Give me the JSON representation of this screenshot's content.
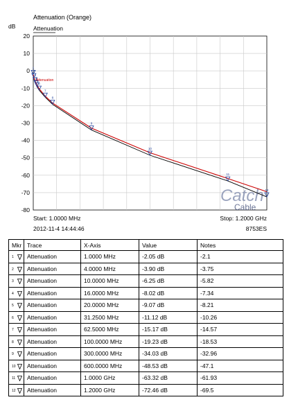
{
  "chart_data": {
    "type": "line",
    "title": "Attenuation (Orange)",
    "legend_label": "Attenuation",
    "ylabel": "dB",
    "ylim": [
      -80,
      20
    ],
    "yticks": [
      "20",
      "10",
      "0",
      "-10",
      "-20",
      "-30",
      "-40",
      "-50",
      "-60",
      "-70",
      "-80"
    ],
    "xlim_mhz": [
      1.0,
      1200.0
    ],
    "x_scale": "linear",
    "grid": true,
    "start_label": "Start: 1.0000 MHz",
    "stop_label": "Stop: 1.2000 GHz",
    "timestamp": "2012-11-4 14:44:46",
    "instrument": "8753ES",
    "marker_label_text": "Attenuation",
    "series": [
      {
        "name": "Attenuation",
        "color": "#cc0000",
        "x": [
          1,
          4,
          10,
          16,
          20,
          31.25,
          62.5,
          100,
          300,
          600,
          1000,
          1200
        ],
        "y": [
          -2.1,
          -3.75,
          -5.82,
          -7.34,
          -8.21,
          -10.26,
          -14.57,
          -18.53,
          -32.96,
          -47.1,
          -61.93,
          -69.5
        ]
      },
      {
        "name": "Measured",
        "color": "#000000",
        "x": [
          1,
          4,
          10,
          16,
          20,
          31.25,
          62.5,
          100,
          300,
          600,
          1000,
          1200
        ],
        "y": [
          -2.05,
          -3.9,
          -6.25,
          -8.02,
          -9.07,
          -11.12,
          -15.17,
          -19.23,
          -34.03,
          -48.53,
          -63.32,
          -72.46
        ]
      }
    ],
    "markers": [
      {
        "id": "1",
        "x": 1,
        "y": -2.05
      },
      {
        "id": "2",
        "x": 4,
        "y": -3.9
      },
      {
        "id": "3",
        "x": 10,
        "y": -6.25
      },
      {
        "id": "4",
        "x": 16,
        "y": -8.02
      },
      {
        "id": "5",
        "x": 20,
        "y": -9.07
      },
      {
        "id": "6",
        "x": 31.25,
        "y": -11.12
      },
      {
        "id": "7",
        "x": 62.5,
        "y": -15.17
      },
      {
        "id": "8",
        "x": 100,
        "y": -19.23
      },
      {
        "id": "9",
        "x": 300,
        "y": -34.03
      },
      {
        "id": "10",
        "x": 600,
        "y": -48.53
      },
      {
        "id": "11",
        "x": 1000,
        "y": -63.32
      },
      {
        "id": "12",
        "x": 1200,
        "y": -72.46
      }
    ]
  },
  "watermark": {
    "logo_text": "Catch",
    "sub_text": "Cable",
    "color": "#7a86a8"
  },
  "table": {
    "headers": [
      "Mkr",
      "Trace",
      "X-Axis",
      "Value",
      "Notes"
    ],
    "rows": [
      {
        "mkr": "1",
        "trace": "Attenuation",
        "x": "1.0000 MHz",
        "value": "-2.05 dB",
        "notes": "-2.1"
      },
      {
        "mkr": "2",
        "trace": "Attenuation",
        "x": "4.0000 MHz",
        "value": "-3.90 dB",
        "notes": "-3.75"
      },
      {
        "mkr": "3",
        "trace": "Attenuation",
        "x": "10.0000 MHz",
        "value": "-6.25 dB",
        "notes": "-5.82"
      },
      {
        "mkr": "4",
        "trace": "Attenuation",
        "x": "16.0000 MHz",
        "value": "-8.02 dB",
        "notes": "-7.34"
      },
      {
        "mkr": "5",
        "trace": "Attenuation",
        "x": "20.0000 MHz",
        "value": "-9.07 dB",
        "notes": "-8.21"
      },
      {
        "mkr": "6",
        "trace": "Attenuation",
        "x": "31.2500 MHz",
        "value": "-11.12 dB",
        "notes": "-10.26"
      },
      {
        "mkr": "7",
        "trace": "Attenuation",
        "x": "62.5000 MHz",
        "value": "-15.17 dB",
        "notes": "-14.57"
      },
      {
        "mkr": "8",
        "trace": "Attenuation",
        "x": "100.0000 MHz",
        "value": "-19.23 dB",
        "notes": "-18.53"
      },
      {
        "mkr": "9",
        "trace": "Attenuation",
        "x": "300.0000 MHz",
        "value": "-34.03 dB",
        "notes": "-32.96"
      },
      {
        "mkr": "10",
        "trace": "Attenuation",
        "x": "600.0000 MHz",
        "value": "-48.53 dB",
        "notes": "-47.1"
      },
      {
        "mkr": "11",
        "trace": "Attenuation",
        "x": "1.0000 GHz",
        "value": "-63.32 dB",
        "notes": "-61.93"
      },
      {
        "mkr": "12",
        "trace": "Attenuation",
        "x": "1.2000 GHz",
        "value": "-72.46 dB",
        "notes": "-69.5"
      }
    ]
  }
}
